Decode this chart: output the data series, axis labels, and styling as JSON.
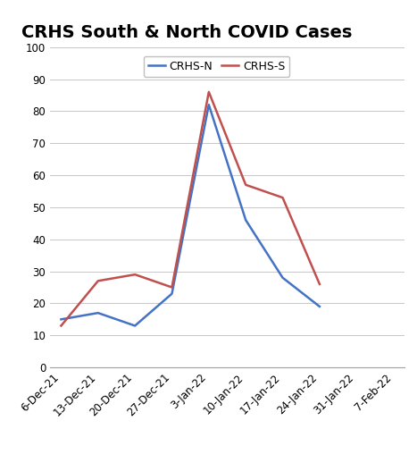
{
  "title": "CRHS South & North COVID Cases",
  "x_labels": [
    "6-Dec-21",
    "13-Dec-21",
    "20-Dec-21",
    "27-Dec-21",
    "3-Jan-22",
    "10-Jan-22",
    "17-Jan-22",
    "24-Jan-22",
    "31-Jan-22",
    "7-Feb-22"
  ],
  "crhs_n": [
    15,
    17,
    13,
    23,
    82,
    46,
    28,
    19,
    null,
    null
  ],
  "crhs_s": [
    13,
    27,
    29,
    25,
    86,
    57,
    53,
    26,
    null,
    null
  ],
  "crhs_n_color": "#4472C4",
  "crhs_s_color": "#C0504D",
  "ylim": [
    0,
    100
  ],
  "yticks": [
    0,
    10,
    20,
    30,
    40,
    50,
    60,
    70,
    80,
    90,
    100
  ],
  "legend_labels": [
    "CRHS-N",
    "CRHS-S"
  ],
  "background_color": "#FFFFFF",
  "grid_color": "#C8C8C8",
  "title_fontsize": 14,
  "axis_fontsize": 8.5,
  "legend_fontsize": 9
}
